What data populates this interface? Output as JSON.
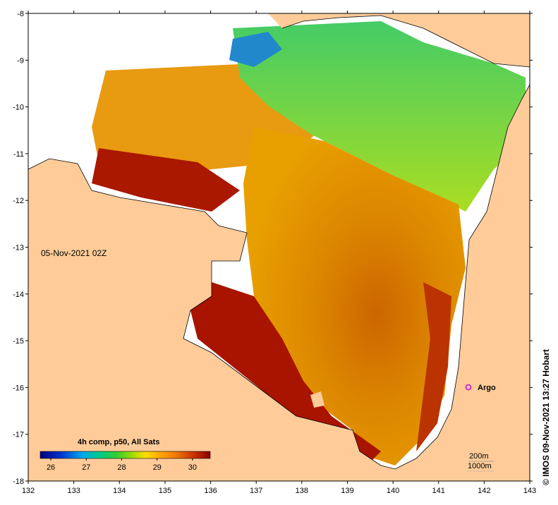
{
  "map": {
    "date_label": "05-Nov-2021 02Z",
    "credit": "© IMOS 09-Nov-2021 13:27 Hobart",
    "lon_ticks": [
      "132",
      "133",
      "134",
      "135",
      "136",
      "137",
      "138",
      "139",
      "140",
      "141",
      "142",
      "143"
    ],
    "lat_ticks": [
      "-8",
      "-9",
      "-10",
      "-11",
      "-12",
      "-13",
      "-14",
      "-15",
      "-16",
      "-17",
      "-18"
    ],
    "lon_range": [
      132,
      143
    ],
    "lat_range": [
      -18,
      -8
    ],
    "land_color": "#ffcc99",
    "nodata_color": "#ffffff"
  },
  "legend": {
    "title": "4h comp, p50, All Sats",
    "ticks": [
      "26",
      "27",
      "28",
      "29",
      "30"
    ],
    "range": [
      25.7,
      30.5
    ],
    "colors": [
      "#00007f",
      "#0033cc",
      "#00aaee",
      "#00cc88",
      "#33cc33",
      "#aadd00",
      "#ffdd00",
      "#ffaa00",
      "#ee7700",
      "#dd4400",
      "#bb1100",
      "#8b0000"
    ]
  },
  "markers": [
    {
      "name": "Argo",
      "lon": 141.7,
      "lat": -16.0,
      "color": "#cc33cc"
    }
  ],
  "contours": {
    "labels": [
      "200m",
      "1000m"
    ]
  }
}
